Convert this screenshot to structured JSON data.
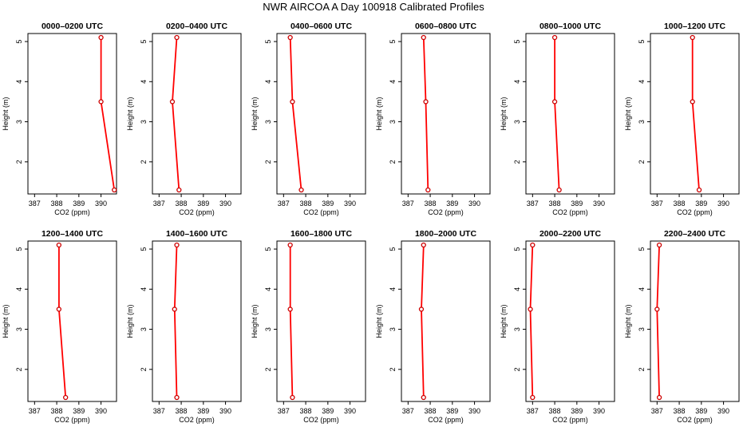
{
  "title": "NWR AIRCOA A  Day 100918  Calibrated Profiles",
  "chart_data": {
    "type": "line",
    "xlabel": "CO2 (ppm)",
    "ylabel": "Height (m)",
    "xlim": [
      386.7,
      390.7
    ],
    "ylim": [
      1.2,
      5.2
    ],
    "x_ticks": [
      387,
      388,
      389,
      390
    ],
    "y_ticks": [
      2,
      3,
      4,
      5
    ],
    "marker": "open-circle",
    "line_color": "#ff0000",
    "marker_color": "#cc0000",
    "grid": false,
    "panels": [
      {
        "title": "0000–0200 UTC",
        "points": [
          {
            "x": 390.0,
            "y": 5.1
          },
          {
            "x": 390.0,
            "y": 3.5
          },
          {
            "x": 390.6,
            "y": 1.3
          }
        ]
      },
      {
        "title": "0200–0400 UTC",
        "points": [
          {
            "x": 387.8,
            "y": 5.1
          },
          {
            "x": 387.6,
            "y": 3.5
          },
          {
            "x": 387.9,
            "y": 1.3
          }
        ]
      },
      {
        "title": "0400–0600 UTC",
        "points": [
          {
            "x": 387.3,
            "y": 5.1
          },
          {
            "x": 387.4,
            "y": 3.5
          },
          {
            "x": 387.8,
            "y": 1.3
          }
        ]
      },
      {
        "title": "0600–0800 UTC",
        "points": [
          {
            "x": 387.7,
            "y": 5.1
          },
          {
            "x": 387.8,
            "y": 3.5
          },
          {
            "x": 387.9,
            "y": 1.3
          }
        ]
      },
      {
        "title": "0800–1000 UTC",
        "points": [
          {
            "x": 388.0,
            "y": 5.1
          },
          {
            "x": 388.0,
            "y": 3.5
          },
          {
            "x": 388.2,
            "y": 1.3
          }
        ]
      },
      {
        "title": "1000–1200 UTC",
        "points": [
          {
            "x": 388.6,
            "y": 5.1
          },
          {
            "x": 388.6,
            "y": 3.5
          },
          {
            "x": 388.9,
            "y": 1.3
          }
        ]
      },
      {
        "title": "1200–1400 UTC",
        "points": [
          {
            "x": 388.1,
            "y": 5.1
          },
          {
            "x": 388.1,
            "y": 3.5
          },
          {
            "x": 388.4,
            "y": 1.3
          }
        ]
      },
      {
        "title": "1400–1600 UTC",
        "points": [
          {
            "x": 387.8,
            "y": 5.1
          },
          {
            "x": 387.7,
            "y": 3.5
          },
          {
            "x": 387.8,
            "y": 1.3
          }
        ]
      },
      {
        "title": "1600–1800 UTC",
        "points": [
          {
            "x": 387.3,
            "y": 5.1
          },
          {
            "x": 387.3,
            "y": 3.5
          },
          {
            "x": 387.4,
            "y": 1.3
          }
        ]
      },
      {
        "title": "1800–2000 UTC",
        "points": [
          {
            "x": 387.7,
            "y": 5.1
          },
          {
            "x": 387.6,
            "y": 3.5
          },
          {
            "x": 387.7,
            "y": 1.3
          }
        ]
      },
      {
        "title": "2000–2200 UTC",
        "points": [
          {
            "x": 387.0,
            "y": 5.1
          },
          {
            "x": 386.9,
            "y": 3.5
          },
          {
            "x": 387.0,
            "y": 1.3
          }
        ]
      },
      {
        "title": "2200–2400 UTC",
        "points": [
          {
            "x": 387.1,
            "y": 5.1
          },
          {
            "x": 387.0,
            "y": 3.5
          },
          {
            "x": 387.1,
            "y": 1.3
          }
        ]
      }
    ]
  }
}
